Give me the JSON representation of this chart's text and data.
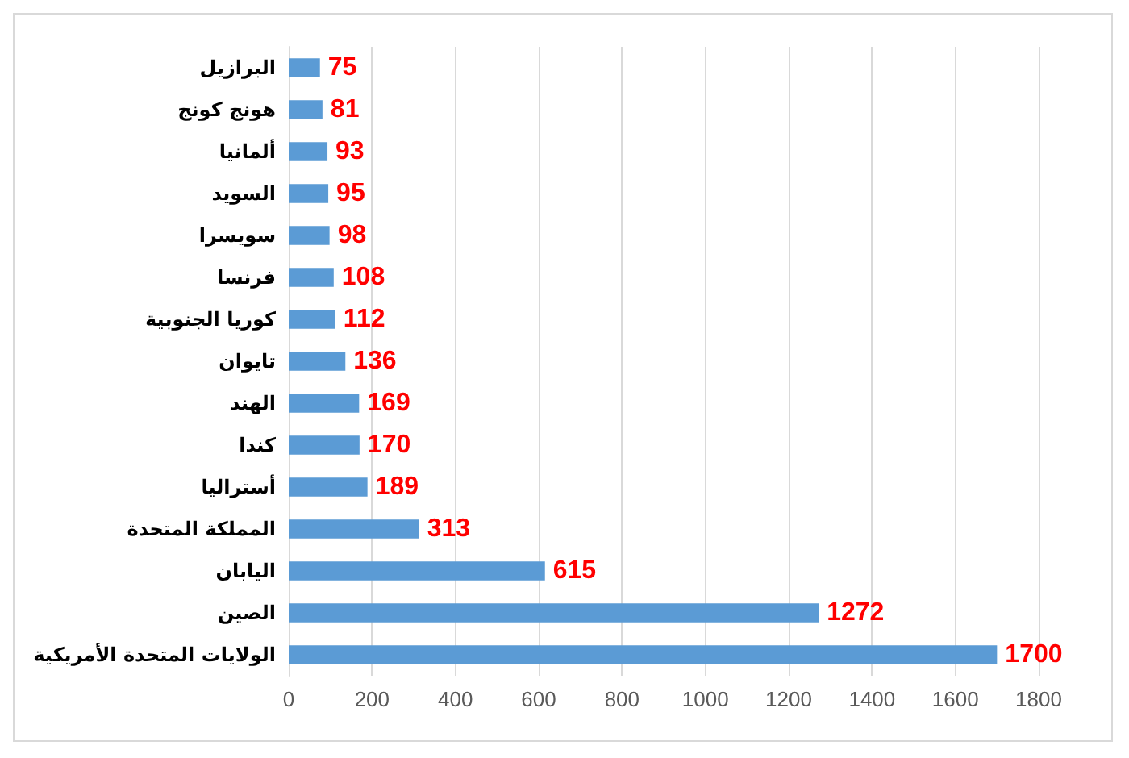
{
  "chart_data": {
    "type": "bar",
    "orientation": "horizontal",
    "categories": [
      "البرازيل",
      "هونج كونج",
      "ألمانيا",
      "السويد",
      "سويسرا",
      "فرنسا",
      "كوريا الجنوبية",
      "تايوان",
      "الهند",
      "كندا",
      "أستراليا",
      "المملكة المتحدة",
      "اليابان",
      "الصين",
      "الولايات المتحدة الأمريكية"
    ],
    "values": [
      75,
      81,
      93,
      95,
      98,
      108,
      112,
      136,
      169,
      170,
      189,
      313,
      615,
      1272,
      1700
    ],
    "color": "#5b9bd5",
    "xlim": [
      0,
      1800
    ],
    "xticks": [
      0,
      200,
      400,
      600,
      800,
      1000,
      1200,
      1400,
      1600,
      1800
    ],
    "grid": "x",
    "data_labels": true
  }
}
